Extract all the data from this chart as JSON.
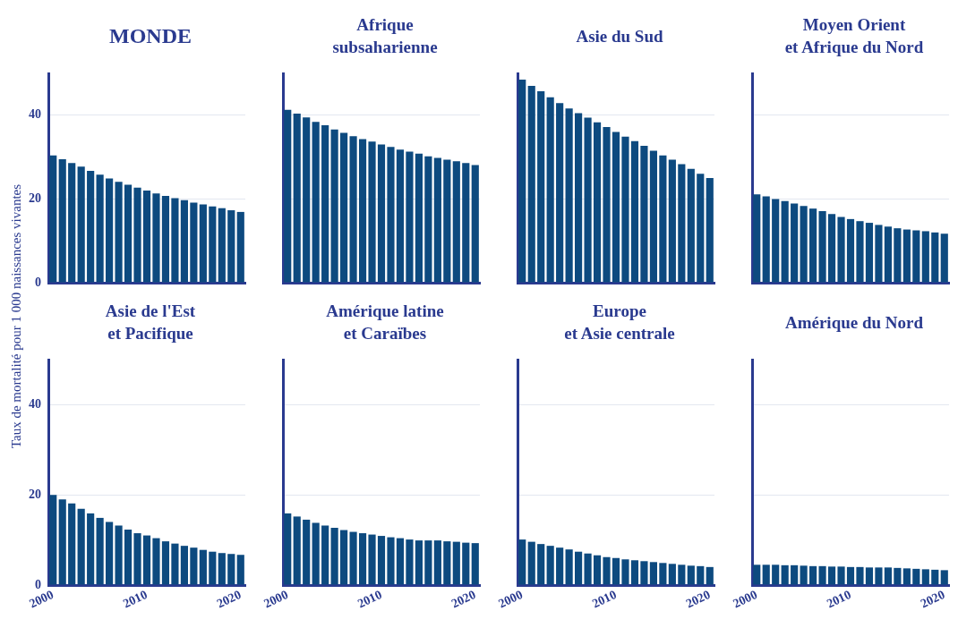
{
  "chart_data": [
    {
      "type": "bar",
      "title": "MONDE",
      "ylabel": "Taux de mortalité pour 1 000 naissances vivantes",
      "categories": [
        "2000",
        null,
        null,
        null,
        null,
        null,
        null,
        null,
        null,
        null,
        "2010",
        null,
        null,
        null,
        null,
        null,
        null,
        null,
        null,
        null,
        "2020"
      ],
      "values": [
        30.4,
        29.5,
        28.6,
        27.7,
        26.7,
        25.8,
        24.9,
        24.1,
        23.4,
        22.7,
        22.0,
        21.3,
        20.7,
        20.2,
        19.7,
        19.1,
        18.7,
        18.2,
        17.8,
        17.3,
        16.9
      ],
      "color": "#0d4a7f",
      "ylim": [
        0,
        50
      ],
      "yticks": [
        0,
        20,
        40
      ],
      "grid": "y",
      "tick_labels": "y"
    },
    {
      "type": "bar",
      "title": "Afrique\nsubsaharienne",
      "categories": [
        "2000",
        null,
        null,
        null,
        null,
        null,
        null,
        null,
        null,
        null,
        "2010",
        null,
        null,
        null,
        null,
        null,
        null,
        null,
        null,
        null,
        "2020"
      ],
      "values": [
        41.3,
        40.4,
        39.5,
        38.4,
        37.6,
        36.6,
        35.8,
        35.0,
        34.3,
        33.7,
        33.0,
        32.4,
        31.8,
        31.3,
        30.8,
        30.2,
        29.8,
        29.4,
        29.0,
        28.6,
        28.1
      ],
      "color": "#0d4a7f",
      "ylim": [
        0,
        50
      ],
      "yticks": [
        0,
        20,
        40
      ],
      "grid": "y",
      "tick_labels": false
    },
    {
      "type": "bar",
      "title": "Asie du Sud",
      "categories": [
        "2000",
        null,
        null,
        null,
        null,
        null,
        null,
        null,
        null,
        null,
        "2010",
        null,
        null,
        null,
        null,
        null,
        null,
        null,
        null,
        null,
        "2020"
      ],
      "values": [
        48.5,
        47.0,
        45.7,
        44.3,
        42.9,
        41.6,
        40.5,
        39.4,
        38.3,
        37.2,
        36.0,
        34.9,
        33.8,
        32.7,
        31.5,
        30.4,
        29.4,
        28.3,
        27.2,
        26.0,
        25.0
      ],
      "color": "#0d4a7f",
      "ylim": [
        0,
        50
      ],
      "yticks": [
        0,
        20,
        40
      ],
      "grid": "y",
      "tick_labels": false
    },
    {
      "type": "bar",
      "title": "Moyen Orient\net Afrique du Nord",
      "categories": [
        "2000",
        null,
        null,
        null,
        null,
        null,
        null,
        null,
        null,
        null,
        "2010",
        null,
        null,
        null,
        null,
        null,
        null,
        null,
        null,
        null,
        "2020"
      ],
      "values": [
        21.1,
        20.6,
        20.0,
        19.5,
        18.9,
        18.3,
        17.7,
        17.1,
        16.4,
        15.7,
        15.2,
        14.7,
        14.3,
        13.8,
        13.4,
        13.0,
        12.7,
        12.5,
        12.3,
        12.0,
        11.7
      ],
      "color": "#0d4a7f",
      "ylim": [
        0,
        50
      ],
      "yticks": [
        0,
        20,
        40
      ],
      "grid": "y",
      "tick_labels": false
    },
    {
      "type": "bar",
      "title": "Asie de l'Est\net Pacifique",
      "categories": [
        "2000",
        null,
        null,
        null,
        null,
        null,
        null,
        null,
        null,
        null,
        "2010",
        null,
        null,
        null,
        null,
        null,
        null,
        null,
        null,
        null,
        "2020"
      ],
      "values": [
        20.0,
        19.0,
        18.1,
        16.9,
        15.9,
        14.9,
        14.0,
        13.2,
        12.3,
        11.5,
        11.0,
        10.4,
        9.7,
        9.2,
        8.7,
        8.3,
        7.8,
        7.4,
        7.1,
        6.9,
        6.7
      ],
      "color": "#0d4a7f",
      "ylim": [
        0,
        50
      ],
      "yticks": [
        0,
        20,
        40
      ],
      "grid": "y"
    },
    {
      "type": "bar",
      "title": "Amérique latine\net Caraïbes",
      "categories": [
        "2000",
        null,
        null,
        null,
        null,
        null,
        null,
        null,
        null,
        null,
        "2010",
        null,
        null,
        null,
        null,
        null,
        null,
        null,
        null,
        null,
        "2020"
      ],
      "values": [
        15.9,
        15.2,
        14.5,
        13.8,
        13.2,
        12.7,
        12.2,
        11.8,
        11.5,
        11.2,
        10.9,
        10.6,
        10.4,
        10.1,
        9.9,
        9.9,
        9.9,
        9.7,
        9.6,
        9.4,
        9.3
      ],
      "color": "#0d4a7f",
      "ylim": [
        0,
        50
      ],
      "yticks": [
        0,
        20,
        40
      ],
      "grid": "y",
      "tick_labels": "x"
    },
    {
      "type": "bar",
      "title": "Europe\net Asie centrale",
      "categories": [
        "2000",
        null,
        null,
        null,
        null,
        null,
        null,
        null,
        null,
        null,
        "2010",
        null,
        null,
        null,
        null,
        null,
        null,
        null,
        null,
        null,
        "2020"
      ],
      "values": [
        10.1,
        9.6,
        9.1,
        8.7,
        8.3,
        7.9,
        7.4,
        7.0,
        6.6,
        6.2,
        6.0,
        5.7,
        5.5,
        5.3,
        5.1,
        4.9,
        4.7,
        4.5,
        4.3,
        4.2,
        4.0
      ],
      "color": "#0d4a7f",
      "ylim": [
        0,
        50
      ],
      "yticks": [
        0,
        20,
        40
      ],
      "grid": "y",
      "tick_labels": "x"
    },
    {
      "type": "bar",
      "title": "Amérique du Nord",
      "categories": [
        "2000",
        null,
        null,
        null,
        null,
        null,
        null,
        null,
        null,
        null,
        "2010",
        null,
        null,
        null,
        null,
        null,
        null,
        null,
        null,
        null,
        "2020"
      ],
      "values": [
        4.5,
        4.5,
        4.5,
        4.4,
        4.4,
        4.3,
        4.2,
        4.2,
        4.1,
        4.1,
        4.0,
        4.0,
        3.9,
        3.9,
        3.9,
        3.8,
        3.7,
        3.6,
        3.5,
        3.4,
        3.3
      ],
      "color": "#0d4a7f",
      "ylim": [
        0,
        50
      ],
      "yticks": [
        0,
        20,
        40
      ],
      "grid": "y",
      "tick_labels": "x"
    }
  ]
}
